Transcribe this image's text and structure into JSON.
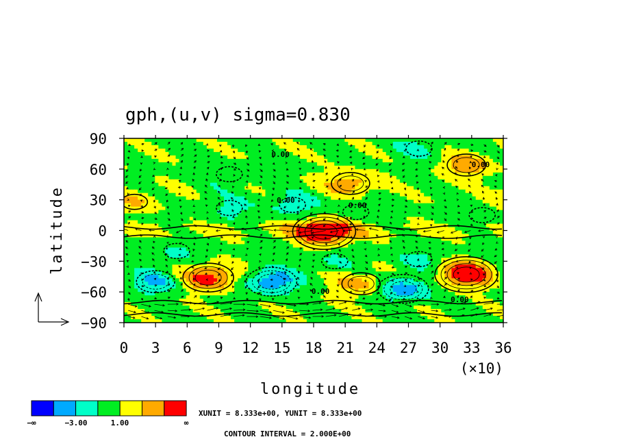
{
  "chart_data": {
    "type": "heatmap",
    "title": "gph,(u,v) sigma=0.830",
    "xlabel": "longitude",
    "ylabel": "latitude",
    "xlim": [
      0,
      36
    ],
    "ylim": [
      -90,
      90
    ],
    "x_multiplier": "(×10)",
    "xticks": [
      0,
      3,
      6,
      9,
      12,
      15,
      18,
      21,
      24,
      27,
      30,
      33,
      36
    ],
    "yticks": [
      90,
      60,
      30,
      0,
      -30,
      -60,
      -90
    ],
    "xtick_labels": [
      "0",
      "3",
      "6",
      "9",
      "12",
      "15",
      "18",
      "21",
      "24",
      "27",
      "30",
      "33",
      "36"
    ],
    "ytick_labels": [
      "90",
      "60",
      "30",
      "0",
      "−30",
      "−60",
      "−90"
    ],
    "colorbar": {
      "colors": [
        "#0000ff",
        "#00aaff",
        "#00ffc8",
        "#00ee22",
        "#ffff00",
        "#ffaa00",
        "#ff0000"
      ],
      "tick_labels": [
        "−∞",
        "−3.00",
        "1.00",
        "∞"
      ]
    },
    "contour_label": "0.00",
    "contour_label_count": 6,
    "unit_text": "XUNIT = 8.333e+00, YUNIT = 8.333e+00",
    "interval_text": "CONTOUR INTERVAL = 2.000E+00",
    "features": [
      {
        "lon": 19.0,
        "lat": -1,
        "value": 7
      },
      {
        "lon": 32.5,
        "lat": -43,
        "value": 6
      },
      {
        "lon": 8.0,
        "lat": -46,
        "value": 5
      },
      {
        "lon": 21.5,
        "lat": 46,
        "value": 3
      },
      {
        "lon": 32.5,
        "lat": 64,
        "value": 3
      },
      {
        "lon": 22.5,
        "lat": -52,
        "value": 3
      },
      {
        "lon": 1.0,
        "lat": 28,
        "value": 2
      },
      {
        "lon": 14.0,
        "lat": -50,
        "value": -4
      },
      {
        "lon": 26.5,
        "lat": -57,
        "value": -4
      },
      {
        "lon": 3.0,
        "lat": -50,
        "value": -3
      },
      {
        "lon": 16.0,
        "lat": 25,
        "value": -2
      },
      {
        "lon": 10.0,
        "lat": 22,
        "value": -1.5
      },
      {
        "lon": 22.0,
        "lat": 18,
        "value": -1.2
      },
      {
        "lon": 28.0,
        "lat": 80,
        "value": -1.5
      },
      {
        "lon": 10.0,
        "lat": 55,
        "value": -1.2
      },
      {
        "lon": 5.0,
        "lat": -20,
        "value": -1.5
      },
      {
        "lon": 28.0,
        "lat": -28,
        "value": -1.5
      },
      {
        "lon": 20.0,
        "lat": -30,
        "value": -1.2
      },
      {
        "lon": 34.0,
        "lat": 15,
        "value": -1.2
      }
    ]
  }
}
